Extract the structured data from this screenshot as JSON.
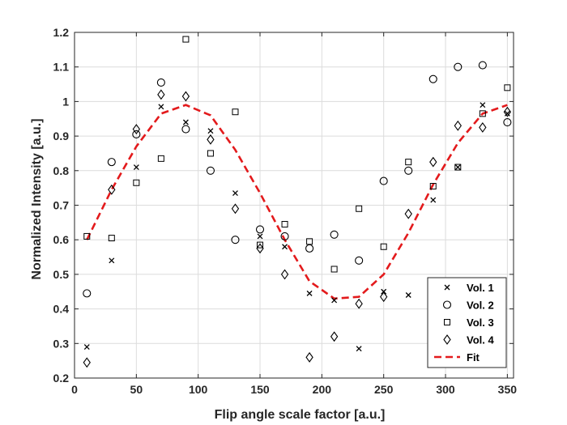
{
  "chart_data": {
    "type": "scatter",
    "xlabel": "Flip angle scale factor [a.u.]",
    "ylabel": "Normalized Intensity [a.u.]",
    "xlim": [
      0,
      355
    ],
    "ylim": [
      0.2,
      1.2
    ],
    "xticks": [
      0,
      50,
      100,
      150,
      200,
      250,
      300,
      350
    ],
    "yticks": [
      0.2,
      0.3,
      0.4,
      0.5,
      0.6,
      0.7,
      0.8,
      0.9,
      1,
      1.1,
      1.2
    ],
    "x_tick_labels": [
      "0",
      "50",
      "100",
      "150",
      "200",
      "250",
      "300",
      "350"
    ],
    "y_tick_labels": [
      "0.2",
      "0.3",
      "0.4",
      "0.5",
      "0.6",
      "0.7",
      "0.8",
      "0.9",
      "1",
      "1.1",
      "1.2"
    ],
    "grid": true,
    "legend_position": "bottom-right",
    "x": [
      10,
      30,
      50,
      70,
      90,
      110,
      130,
      150,
      170,
      190,
      210,
      230,
      250,
      270,
      290,
      310,
      330,
      350
    ],
    "series": [
      {
        "name": "Vol. 1",
        "marker": "x",
        "color": "#000000",
        "values": [
          0.29,
          0.54,
          0.81,
          0.985,
          0.94,
          0.915,
          0.735,
          0.61,
          0.58,
          0.445,
          0.425,
          0.285,
          0.45,
          0.44,
          0.715,
          0.81,
          0.99,
          0.965
        ]
      },
      {
        "name": "Vol. 2",
        "marker": "circle",
        "color": "#000000",
        "values": [
          0.445,
          0.825,
          0.905,
          1.055,
          0.92,
          0.8,
          0.6,
          0.63,
          0.61,
          0.575,
          0.615,
          0.54,
          0.77,
          0.8,
          1.065,
          1.1,
          1.105,
          0.94
        ]
      },
      {
        "name": "Vol. 3",
        "marker": "square",
        "color": "#000000",
        "values": [
          0.61,
          0.605,
          0.765,
          0.835,
          1.18,
          0.85,
          0.97,
          0.585,
          0.645,
          0.595,
          0.515,
          0.69,
          0.58,
          0.825,
          0.755,
          0.81,
          0.965,
          1.04
        ]
      },
      {
        "name": "Vol. 4",
        "marker": "diamond",
        "color": "#000000",
        "values": [
          0.245,
          0.745,
          0.92,
          1.02,
          1.015,
          0.89,
          0.69,
          0.575,
          0.5,
          0.26,
          0.32,
          0.415,
          0.435,
          0.675,
          0.825,
          0.93,
          0.925,
          0.97
        ]
      },
      {
        "name": "Fit",
        "marker": "dashed-line",
        "color": "#e31a1c",
        "values": [
          0.6,
          0.745,
          0.87,
          0.965,
          0.99,
          0.96,
          0.86,
          0.735,
          0.6,
          0.48,
          0.43,
          0.435,
          0.5,
          0.62,
          0.76,
          0.88,
          0.965,
          0.99
        ]
      }
    ]
  }
}
